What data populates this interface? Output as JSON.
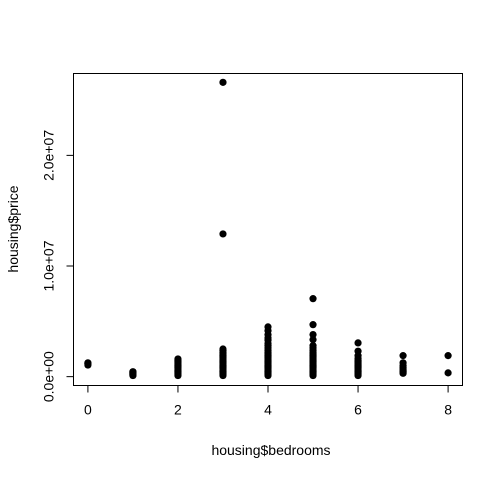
{
  "chart_data": {
    "type": "scatter",
    "title": "",
    "xlabel": "housing$bedrooms",
    "ylabel": "housing$price",
    "xlim": [
      -0.32,
      8.32
    ],
    "ylim": [
      -800000,
      27400000
    ],
    "x_ticks": [
      0,
      2,
      4,
      6,
      8
    ],
    "x_tick_labels": [
      "0",
      "2",
      "4",
      "6",
      "8"
    ],
    "y_ticks": [
      0,
      10000000,
      20000000
    ],
    "y_tick_labels": [
      "0.0e+00",
      "1.0e+07",
      "2.0e+07"
    ],
    "grid": false,
    "legend": "none",
    "point_color": "#000000",
    "series": [
      {
        "x": [
          0,
          0,
          0,
          0,
          1,
          1,
          1,
          1,
          1,
          1,
          1,
          1,
          2,
          2,
          2,
          2,
          2,
          2,
          2,
          2,
          2,
          2,
          2,
          2,
          2,
          2,
          2,
          2,
          3,
          3,
          3,
          3,
          3,
          3,
          3,
          3,
          3,
          3,
          3,
          3,
          3,
          3,
          3,
          3,
          3,
          3,
          3,
          3,
          3,
          3,
          3,
          3,
          3,
          3,
          4,
          4,
          4,
          4,
          4,
          4,
          4,
          4,
          4,
          4,
          4,
          4,
          4,
          4,
          4,
          4,
          4,
          4,
          4,
          4,
          4,
          4,
          4,
          4,
          4,
          4,
          4,
          4,
          4,
          4,
          4,
          5,
          5,
          5,
          5,
          5,
          5,
          5,
          5,
          5,
          5,
          5,
          5,
          5,
          5,
          5,
          5,
          5,
          5,
          5,
          5,
          5,
          5,
          5,
          5,
          5,
          5,
          5,
          5,
          5,
          6,
          6,
          6,
          6,
          6,
          6,
          6,
          6,
          6,
          6,
          6,
          6,
          6,
          6,
          6,
          6,
          6,
          6,
          6,
          7,
          7,
          7,
          7,
          7,
          7,
          7,
          7,
          7,
          8,
          8
        ],
        "y": [
          1050000,
          1150000,
          1200000,
          1250000,
          100000,
          150000,
          200000,
          250000,
          300000,
          350000,
          400000,
          450000,
          100000,
          200000,
          300000,
          400000,
          500000,
          600000,
          700000,
          800000,
          900000,
          1000000,
          1100000,
          1200000,
          1300000,
          1400000,
          1500000,
          1600000,
          100000,
          200000,
          300000,
          400000,
          500000,
          600000,
          700000,
          800000,
          900000,
          1000000,
          1100000,
          1200000,
          1300000,
          1400000,
          1500000,
          1600000,
          1700000,
          1800000,
          1900000,
          2000000,
          2100000,
          2200000,
          2350000,
          2500000,
          12900000,
          26600000,
          100000,
          200000,
          300000,
          400000,
          500000,
          600000,
          700000,
          800000,
          900000,
          1000000,
          1100000,
          1200000,
          1300000,
          1400000,
          1500000,
          1600000,
          1700000,
          1800000,
          1900000,
          2000000,
          2100000,
          2200000,
          2400000,
          2600000,
          2800000,
          3000000,
          3300000,
          3500000,
          3800000,
          4150000,
          4500000,
          100000,
          200000,
          300000,
          400000,
          500000,
          600000,
          700000,
          800000,
          900000,
          1000000,
          1100000,
          1200000,
          1300000,
          1400000,
          1500000,
          1600000,
          1700000,
          1800000,
          1900000,
          2000000,
          2100000,
          2200000,
          2400000,
          2600000,
          2800000,
          3350000,
          3800000,
          4700000,
          7050000,
          100000,
          200000,
          300000,
          400000,
          500000,
          600000,
          700000,
          800000,
          900000,
          1000000,
          1100000,
          1200000,
          1300000,
          1400000,
          1500000,
          1650000,
          1900000,
          2300000,
          3050000,
          300000,
          400000,
          500000,
          600000,
          700000,
          850000,
          1000000,
          1250000,
          1900000,
          340000,
          1900000
        ]
      }
    ]
  }
}
